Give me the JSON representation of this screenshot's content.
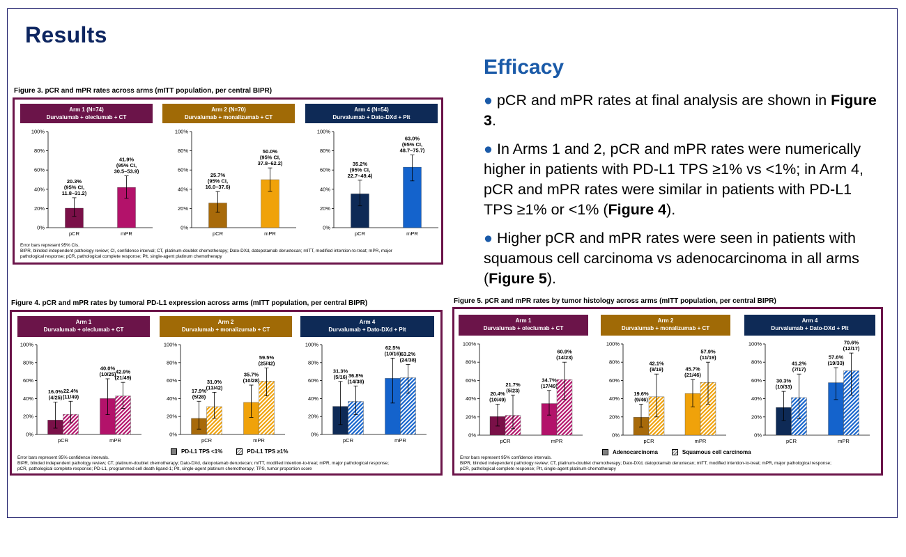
{
  "slide": {
    "heading": "Results",
    "efficacy_title": "Efficacy",
    "bullets": [
      [
        {
          "t": "pCR and mPR rates at final analysis are shown in "
        },
        {
          "t": "Figure 3",
          "b": true
        },
        {
          "t": "."
        }
      ],
      [
        {
          "t": "In Arms 1 and 2, pCR and mPR rates were numerically higher in patients with PD-L1 TPS ≥1% vs <1%; in Arm 4, pCR and mPR rates were similar in patients with PD-L1 TPS ≥1% or <1% ("
        },
        {
          "t": "Figure 4",
          "b": true
        },
        {
          "t": ")."
        }
      ],
      [
        {
          "t": "Higher pCR and mPR rates were seen in patients with squamous cell carcinoma vs adenocarcinoma in all arms ("
        },
        {
          "t": "Figure 5",
          "b": true
        },
        {
          "t": ")."
        }
      ]
    ]
  },
  "colors": {
    "arm1": "#7a1048",
    "arm1b": "#b3126a",
    "arm2": "#a86a0a",
    "arm2b": "#f0a20a",
    "arm4": "#0e2a56",
    "arm4b": "#1463cc",
    "header1": "#6b1449",
    "header2": "#a06a06",
    "header4": "#0e2a56",
    "border": "#6b1449"
  },
  "chart_data": [
    {
      "id": "fig3",
      "type": "bar",
      "title": "Figure 3. pCR and mPR rates across arms (mITT population, per central BIPR)",
      "ylim": [
        0,
        100
      ],
      "yticks": [
        "0%",
        "20%",
        "40%",
        "60%",
        "80%",
        "100%"
      ],
      "categories": [
        "pCR",
        "mPR"
      ],
      "panels": [
        {
          "header": "Arm 1 (N=74)",
          "subheader": "Durvalumab + oleclumab + CT",
          "arm": "arm1",
          "values": [
            20.3,
            41.9
          ],
          "ci": [
            [
              11.8,
              31.2
            ],
            [
              30.5,
              53.9
            ]
          ],
          "labels": [
            [
              "20.3%",
              "(95% CI,",
              "11.8–31.2)"
            ],
            [
              "41.9%",
              "(95% CI,",
              "30.5–53.9)"
            ]
          ]
        },
        {
          "header": "Arm 2 (N=70)",
          "subheader": "Durvalumab + monalizumab + CT",
          "arm": "arm2",
          "values": [
            25.7,
            50.0
          ],
          "ci": [
            [
              16.0,
              37.6
            ],
            [
              37.8,
              62.2
            ]
          ],
          "labels": [
            [
              "25.7%",
              "(95% CI,",
              "16.0–37.6)"
            ],
            [
              "50.0%",
              "(95% CI,",
              "37.8–62.2)"
            ]
          ]
        },
        {
          "header": "Arm 4 (N=54)",
          "subheader": "Durvalumab + Dato-DXd + Plt",
          "arm": "arm4",
          "values": [
            35.2,
            63.0
          ],
          "ci": [
            [
              22.7,
              49.4
            ],
            [
              48.7,
              75.7
            ]
          ],
          "labels": [
            [
              "35.2%",
              "(95% CI,",
              "22.7–49.4)"
            ],
            [
              "63.0%",
              "(95% CI,",
              "48.7–75.7)"
            ]
          ]
        }
      ],
      "notes": [
        "Error bars represent 95% CIs.",
        "BIPR, blinded independent pathology review; CI, confidence interval; CT, platinum-doublet chemotherapy; Dato-DXd, datopotamab deruxtecan; mITT, modified intention-to-treat; mPR, major",
        "pathological response; pCR, pathological complete response; Plt, single-agent platinum chemotherapy"
      ]
    },
    {
      "id": "fig4",
      "type": "bar",
      "title": "Figure 4. pCR and mPR rates by tumoral PD-L1 expression across arms (mITT population, per central BIPR)",
      "ylim": [
        0,
        100
      ],
      "yticks": [
        "0%",
        "20%",
        "40%",
        "60%",
        "80%",
        "100%"
      ],
      "categories": [
        "pCR",
        "mPR"
      ],
      "series_names": [
        "PD-L1 TPS <1%",
        "PD-L1 TPS ≥1%"
      ],
      "panels": [
        {
          "header": "Arm 1",
          "subheader": "Durvalumab + oleclumab + CT",
          "arm": "arm1",
          "series": [
            {
              "values": [
                16.0,
                40.0
              ],
              "ci": [
                [
                  7,
                  36
                ],
                [
                  22,
                  62
                ]
              ],
              "labels": [
                [
                  "16.0%",
                  "(4/25)"
                ],
                [
                  "40.0%",
                  "(10/25)"
                ]
              ]
            },
            {
              "values": [
                22.4,
                42.9
              ],
              "ci": [
                [
                  13,
                  37
                ],
                [
                  29,
                  58
                ]
              ],
              "labels": [
                [
                  "22.4%",
                  "(11/49)"
                ],
                [
                  "42.9%",
                  "(21/49)"
                ]
              ]
            }
          ]
        },
        {
          "header": "Arm 2",
          "subheader": "Durvalumab + monalizumab + CT",
          "arm": "arm2",
          "series": [
            {
              "values": [
                17.9,
                35.7
              ],
              "ci": [
                [
                  6,
                  37
                ],
                [
                  19,
                  55
                ]
              ],
              "labels": [
                [
                  "17.9%",
                  "(5/28)"
                ],
                [
                  "35.7%",
                  "(10/28)"
                ]
              ]
            },
            {
              "values": [
                31.0,
                59.5
              ],
              "ci": [
                [
                  18,
                  47
                ],
                [
                  43,
                  74
                ]
              ],
              "labels": [
                [
                  "31.0%",
                  "(13/42)"
                ],
                [
                  "59.5%",
                  "(25/42)"
                ]
              ]
            }
          ]
        },
        {
          "header": "Arm 4",
          "subheader": "Durvalumab + Dato-DXd + Plt",
          "arm": "arm4",
          "series": [
            {
              "values": [
                31.3,
                62.5
              ],
              "ci": [
                [
                  11,
                  59
                ],
                [
                  35,
                  85
                ]
              ],
              "labels": [
                [
                  "31.3%",
                  "(5/16)"
                ],
                [
                  "62.5%",
                  "(10/16)"
                ]
              ]
            },
            {
              "values": [
                36.8,
                63.2
              ],
              "ci": [
                [
                  22,
                  54
                ],
                [
                  46,
                  78
                ]
              ],
              "labels": [
                [
                  "36.8%",
                  "(14/38)"
                ],
                [
                  "63.2%",
                  "(24/38)"
                ]
              ]
            }
          ]
        }
      ],
      "notes": [
        "Error bars represent 95% confidence intervals.",
        "BIPR, blinded independent pathology review; CT, platinum-doublet chemotherapy; Dato-DXd, datopotamab deruxtecan; mITT, modified intention-to-treat; mPR, major pathological response;",
        "pCR, pathological complete response; PD-L1, programmed cell death ligand-1; Plt, single-agent platinum chemotherapy; TPS, tumor proportion score"
      ]
    },
    {
      "id": "fig5",
      "type": "bar",
      "title": "Figure 5. pCR and mPR rates by tumor histology across arms (mITT population, per central BIPR)",
      "ylim": [
        0,
        100
      ],
      "yticks": [
        "0%",
        "20%",
        "40%",
        "60%",
        "80%",
        "100%"
      ],
      "categories": [
        "pCR",
        "mPR"
      ],
      "series_names": [
        "Adenocarcinoma",
        "Squamous cell carcinoma"
      ],
      "panels": [
        {
          "header": "Arm 1",
          "subheader": "Durvalumab + oleclumab + CT",
          "arm": "arm1",
          "series": [
            {
              "values": [
                20.4,
                34.7
              ],
              "ci": [
                [
                  10,
                  34
                ],
                [
                  22,
                  49
                ]
              ],
              "labels": [
                [
                  "20.4%",
                  "(10/49)"
                ],
                [
                  "34.7%",
                  "(17/49)"
                ]
              ]
            },
            {
              "values": [
                21.7,
                60.9
              ],
              "ci": [
                [
                  7,
                  44
                ],
                [
                  39,
                  80
                ]
              ],
              "labels": [
                [
                  "21.7%",
                  "(5/23)"
                ],
                [
                  "60.9%",
                  "(14/23)"
                ]
              ]
            }
          ]
        },
        {
          "header": "Arm 2",
          "subheader": "Durvalumab + monalizumab + CT",
          "arm": "arm2",
          "series": [
            {
              "values": [
                19.6,
                45.7
              ],
              "ci": [
                [
                  9,
                  34
                ],
                [
                  31,
                  61
                ]
              ],
              "labels": [
                [
                  "19.6%",
                  "(9/46)"
                ],
                [
                  "45.7%",
                  "(21/46)"
                ]
              ]
            },
            {
              "values": [
                42.1,
                57.9
              ],
              "ci": [
                [
                  20,
                  67
                ],
                [
                  34,
                  80
                ]
              ],
              "labels": [
                [
                  "42.1%",
                  "(8/19)"
                ],
                [
                  "57.9%",
                  "(11/19)"
                ]
              ]
            }
          ]
        },
        {
          "header": "Arm 4",
          "subheader": "Durvalumab + Dato-DXd + Plt",
          "arm": "arm4",
          "series": [
            {
              "values": [
                30.3,
                57.6
              ],
              "ci": [
                [
                  16,
                  48
                ],
                [
                  39,
                  74
                ]
              ],
              "labels": [
                [
                  "30.3%",
                  "(10/33)"
                ],
                [
                  "57.6%",
                  "(19/33)"
                ]
              ]
            },
            {
              "values": [
                41.2,
                70.6
              ],
              "ci": [
                [
                  18,
                  67
                ],
                [
                  44,
                  90
                ]
              ],
              "labels": [
                [
                  "41.2%",
                  "(7/17)"
                ],
                [
                  "70.6%",
                  "(12/17)"
                ]
              ]
            }
          ]
        }
      ],
      "notes": [
        "Error bars represent 95% confidence intervals.",
        "BIPR, blinded independent pathology review; CT, platinum-doublet chemotherapy; Dato-DXd, datopotamab deruxtecan; mITT, modified intention-to-treat; mPR, major pathological response;",
        "pCR, pathological complete response; Plt, single-agent platinum chemotherapy"
      ]
    }
  ]
}
